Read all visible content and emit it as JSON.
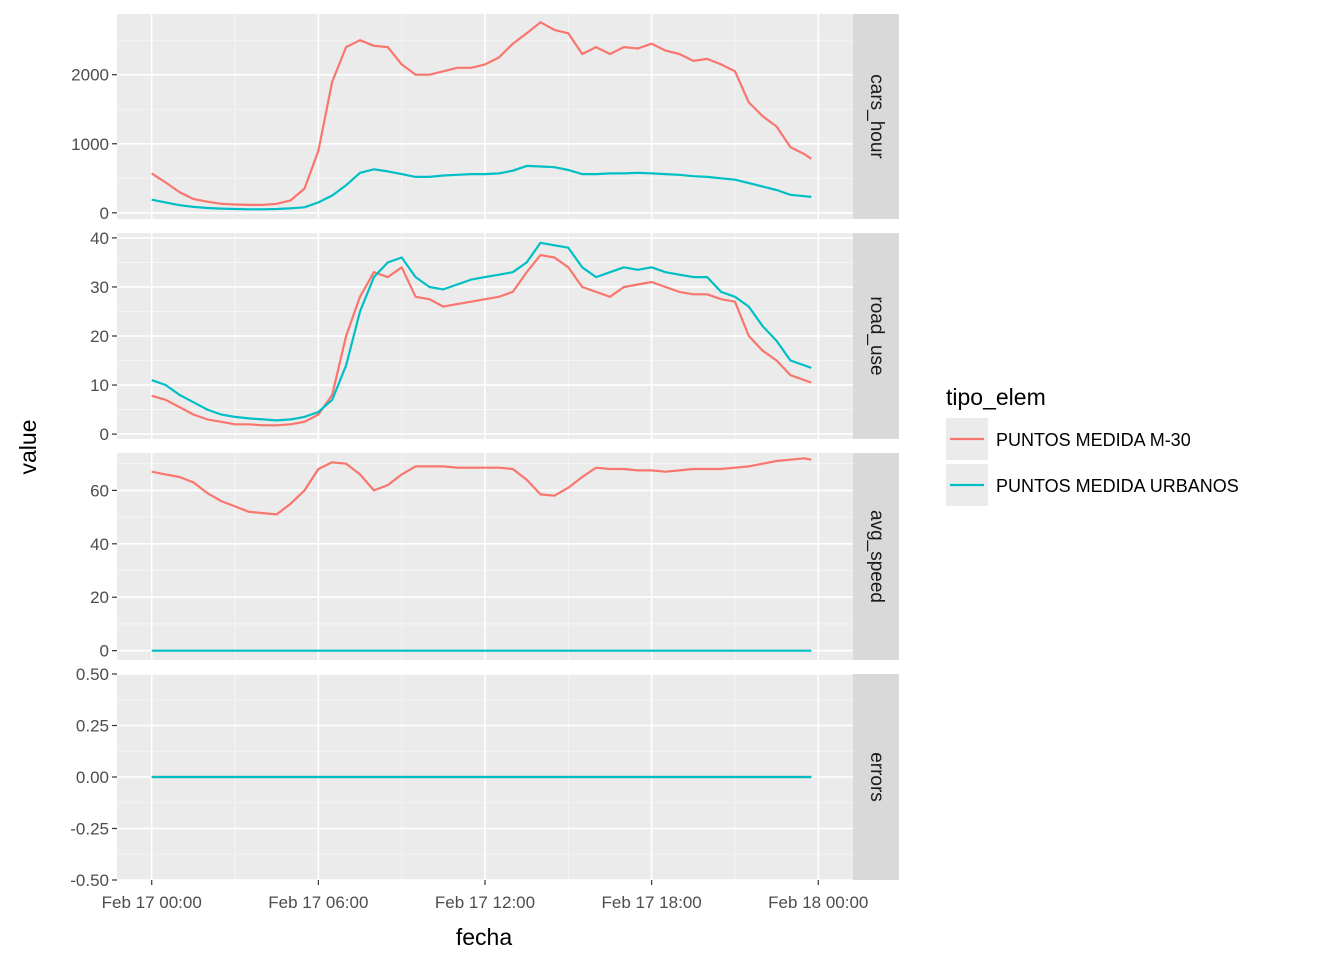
{
  "chart_data": {
    "type": "line",
    "xlabel": "fecha",
    "ylabel": "value",
    "x_ticks": [
      "Feb 17 00:00",
      "Feb 17 06:00",
      "Feb 17 12:00",
      "Feb 17 18:00",
      "Feb 18 00:00"
    ],
    "x_tick_hours": [
      0,
      6,
      12,
      18,
      24
    ],
    "x": [
      0,
      0.5,
      1,
      1.5,
      2,
      2.5,
      3,
      3.5,
      4,
      4.5,
      5,
      5.5,
      6,
      6.5,
      7,
      7.5,
      8,
      8.5,
      9,
      9.5,
      10,
      10.5,
      11,
      11.5,
      12,
      12.5,
      13,
      13.5,
      14,
      14.5,
      15,
      15.5,
      16,
      16.5,
      17,
      17.5,
      18,
      18.5,
      19,
      19.5,
      20,
      20.5,
      21,
      21.5,
      22,
      22.5,
      23,
      23.5,
      23.75
    ],
    "legend": {
      "title": "tipo_elem",
      "position": "right",
      "entries": [
        "PUNTOS MEDIDA M-30",
        "PUNTOS MEDIDA URBANOS"
      ]
    },
    "colors": {
      "PUNTOS MEDIDA M-30": "#F8766D",
      "PUNTOS MEDIDA URBANOS": "#00BFC4"
    },
    "grid": true,
    "facets": [
      {
        "name": "cars_hour",
        "ylim": [
          -90,
          2880
        ],
        "y_ticks": [
          0,
          1000,
          2000
        ],
        "y_tick_labels": [
          "0",
          "1000",
          "2000"
        ],
        "series": [
          {
            "name": "PUNTOS MEDIDA M-30",
            "values": [
              570,
              440,
              300,
              200,
              160,
              130,
              120,
              115,
              115,
              130,
              180,
              350,
              900,
              1900,
              2400,
              2500,
              2420,
              2400,
              2150,
              2000,
              2000,
              2050,
              2100,
              2100,
              2150,
              2250,
              2450,
              2600,
              2760,
              2650,
              2600,
              2300,
              2400,
              2300,
              2400,
              2380,
              2450,
              2350,
              2300,
              2200,
              2230,
              2150,
              2050,
              1600,
              1400,
              1250,
              950,
              850,
              780
            ]
          },
          {
            "name": "PUNTOS MEDIDA URBANOS",
            "values": [
              190,
              150,
              110,
              85,
              70,
              60,
              55,
              50,
              50,
              55,
              65,
              80,
              150,
              250,
              400,
              580,
              630,
              600,
              560,
              520,
              520,
              540,
              550,
              560,
              560,
              570,
              610,
              680,
              670,
              660,
              620,
              560,
              560,
              570,
              570,
              580,
              570,
              560,
              550,
              530,
              520,
              500,
              480,
              430,
              380,
              330,
              260,
              240,
              230
            ]
          }
        ]
      },
      {
        "name": "road_use",
        "ylim": [
          -1,
          41
        ],
        "y_ticks": [
          0,
          10,
          20,
          30,
          40
        ],
        "y_tick_labels": [
          "0",
          "10",
          "20",
          "30",
          "40"
        ],
        "series": [
          {
            "name": "PUNTOS MEDIDA M-30",
            "values": [
              7.8,
              7,
              5.5,
              4,
              3,
              2.5,
              2,
              2,
              1.8,
              1.8,
              2,
              2.5,
              4,
              8,
              20,
              28,
              33,
              32,
              34,
              28,
              27.5,
              26,
              26.5,
              27,
              27.5,
              28,
              29,
              33,
              36.5,
              36,
              34,
              30,
              29,
              28,
              30,
              30.5,
              31,
              30,
              29,
              28.5,
              28.5,
              27.5,
              27,
              20,
              17,
              15,
              12,
              11,
              10.5
            ]
          },
          {
            "name": "PUNTOS MEDIDA URBANOS",
            "values": [
              11,
              10,
              8,
              6.5,
              5,
              4,
              3.5,
              3.2,
              3,
              2.8,
              3,
              3.5,
              4.5,
              7,
              14,
              25,
              32,
              35,
              36,
              32,
              30,
              29.5,
              30.5,
              31.5,
              32,
              32.5,
              33,
              35,
              39,
              38.5,
              38,
              34,
              32,
              33,
              34,
              33.5,
              34,
              33,
              32.5,
              32,
              32,
              29,
              28,
              26,
              22,
              19,
              15,
              14,
              13.5
            ]
          }
        ]
      },
      {
        "name": "avg_speed",
        "ylim": [
          -3.5,
          74
        ],
        "y_ticks": [
          0,
          20,
          40,
          60
        ],
        "y_tick_labels": [
          "0",
          "20",
          "40",
          "60"
        ],
        "series": [
          {
            "name": "PUNTOS MEDIDA M-30",
            "values": [
              67,
              66,
              65,
              63,
              59,
              56,
              54,
              52,
              51.5,
              51,
              55,
              60,
              68,
              70.5,
              70,
              66,
              60,
              62,
              66,
              69,
              69,
              69,
              68.5,
              68.5,
              68.5,
              68.5,
              68,
              64,
              58.5,
              58,
              61,
              65,
              68.5,
              68,
              68,
              67.5,
              67.5,
              67,
              67.5,
              68,
              68,
              68,
              68.5,
              69,
              70,
              71,
              71.5,
              72,
              71.5
            ]
          },
          {
            "name": "PUNTOS MEDIDA URBANOS",
            "values": [
              0,
              0,
              0,
              0,
              0,
              0,
              0,
              0,
              0,
              0,
              0,
              0,
              0,
              0,
              0,
              0,
              0,
              0,
              0,
              0,
              0,
              0,
              0,
              0,
              0,
              0,
              0,
              0,
              0,
              0,
              0,
              0,
              0,
              0,
              0,
              0,
              0,
              0,
              0,
              0,
              0,
              0,
              0,
              0,
              0,
              0,
              0,
              0,
              0
            ]
          }
        ]
      },
      {
        "name": "errors",
        "ylim": [
          -0.5,
          0.5
        ],
        "y_ticks": [
          -0.5,
          -0.25,
          0,
          0.25,
          0.5
        ],
        "y_tick_labels": [
          "-0.50",
          "-0.25",
          "0.00",
          "0.25",
          "0.50"
        ],
        "series": [
          {
            "name": "PUNTOS MEDIDA M-30",
            "values": [
              0,
              0,
              0,
              0,
              0,
              0,
              0,
              0,
              0,
              0,
              0,
              0,
              0,
              0,
              0,
              0,
              0,
              0,
              0,
              0,
              0,
              0,
              0,
              0,
              0,
              0,
              0,
              0,
              0,
              0,
              0,
              0,
              0,
              0,
              0,
              0,
              0,
              0,
              0,
              0,
              0,
              0,
              0,
              0,
              0,
              0,
              0,
              0,
              0
            ]
          },
          {
            "name": "PUNTOS MEDIDA URBANOS",
            "values": [
              0,
              0,
              0,
              0,
              0,
              0,
              0,
              0,
              0,
              0,
              0,
              0,
              0,
              0,
              0,
              0,
              0,
              0,
              0,
              0,
              0,
              0,
              0,
              0,
              0,
              0,
              0,
              0,
              0,
              0,
              0,
              0,
              0,
              0,
              0,
              0,
              0,
              0,
              0,
              0,
              0,
              0,
              0,
              0,
              0,
              0,
              0,
              0,
              0
            ]
          }
        ]
      }
    ]
  }
}
